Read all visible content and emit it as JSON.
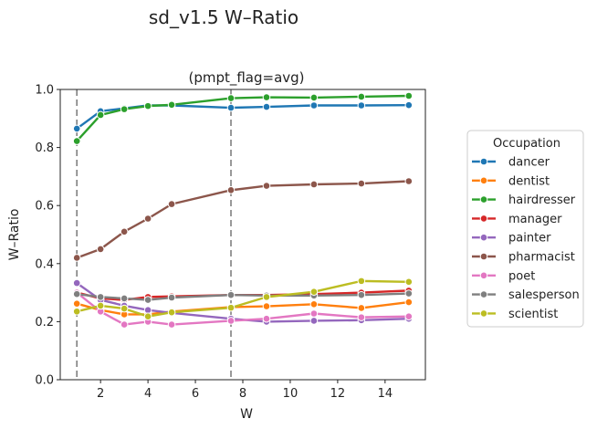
{
  "page": {
    "suptitle": "sd_v1.5 W–Ratio"
  },
  "chart_data": {
    "type": "line",
    "title": "(pmpt_flag=avg)",
    "xlabel": "W",
    "ylabel": "W–Ratio",
    "xlim": [
      0.3,
      15.7
    ],
    "ylim": [
      0.0,
      1.0
    ],
    "xticks": [
      2,
      4,
      6,
      8,
      10,
      12,
      14
    ],
    "yticks": [
      0.0,
      0.2,
      0.4,
      0.6,
      0.8,
      1.0
    ],
    "ytick_labels": [
      "0.0",
      "0.2",
      "0.4",
      "0.6",
      "0.8",
      "1.0"
    ],
    "vlines": [
      1,
      7.5
    ],
    "grid": false,
    "legend": {
      "title": "Occupation",
      "placement": "right"
    },
    "x": [
      1,
      2,
      3,
      4,
      5,
      7.5,
      9,
      11,
      13,
      15
    ],
    "series": [
      {
        "name": "dancer",
        "color": "#1f77b4",
        "values": [
          0.865,
          0.925,
          0.935,
          0.945,
          0.945,
          0.937,
          0.94,
          0.945,
          0.945,
          0.946
        ]
      },
      {
        "name": "dentist",
        "color": "#ff7f0e",
        "values": [
          0.262,
          0.24,
          0.225,
          0.225,
          0.235,
          0.25,
          0.253,
          0.26,
          0.247,
          0.267
        ]
      },
      {
        "name": "hairdresser",
        "color": "#2ca02c",
        "values": [
          0.822,
          0.912,
          0.932,
          0.943,
          0.947,
          0.97,
          0.973,
          0.972,
          0.975,
          0.978
        ]
      },
      {
        "name": "manager",
        "color": "#d62728",
        "values": [
          0.3,
          0.28,
          0.275,
          0.285,
          0.287,
          0.292,
          0.292,
          0.295,
          0.3,
          0.307
        ]
      },
      {
        "name": "painter",
        "color": "#9467bd",
        "values": [
          0.333,
          0.275,
          0.255,
          0.24,
          0.23,
          0.21,
          0.2,
          0.203,
          0.205,
          0.21
        ]
      },
      {
        "name": "pharmacist",
        "color": "#8c564b",
        "values": [
          0.42,
          0.45,
          0.51,
          0.555,
          0.605,
          0.653,
          0.668,
          0.673,
          0.676,
          0.684
        ]
      },
      {
        "name": "poet",
        "color": "#e377c2",
        "values": [
          0.3,
          0.235,
          0.19,
          0.2,
          0.19,
          0.203,
          0.21,
          0.228,
          0.215,
          0.218
        ]
      },
      {
        "name": "salesperson",
        "color": "#7f7f7f",
        "values": [
          0.295,
          0.285,
          0.28,
          0.275,
          0.283,
          0.292,
          0.29,
          0.29,
          0.292,
          0.297
        ]
      },
      {
        "name": "scientist",
        "color": "#bcbd22",
        "values": [
          0.235,
          0.255,
          0.245,
          0.218,
          0.232,
          0.248,
          0.285,
          0.303,
          0.34,
          0.337
        ]
      }
    ]
  }
}
